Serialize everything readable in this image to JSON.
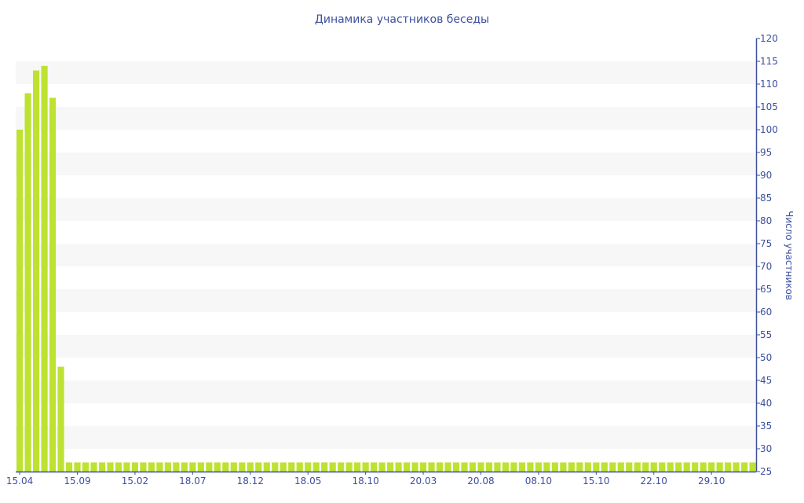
{
  "chart_data": {
    "type": "bar",
    "title": "Динамика участников беседы",
    "ylabel": "Число участников",
    "xlabel": "",
    "ylim": [
      25,
      120
    ],
    "yticks": [
      25,
      30,
      35,
      40,
      45,
      50,
      55,
      60,
      65,
      70,
      75,
      80,
      85,
      90,
      95,
      100,
      105,
      110,
      115,
      120
    ],
    "y_axis_position": "right",
    "grid": "alternating horizontal bands",
    "x_tick_labels": [
      "15.04",
      "15.09",
      "15.02",
      "18.07",
      "18.12",
      "18.05",
      "18.10",
      "20.03",
      "20.08",
      "08.10",
      "15.10",
      "22.10",
      "29.10"
    ],
    "x_tick_every_n_bars": 7,
    "values": [
      100,
      108,
      113,
      114,
      107,
      48,
      27,
      27,
      27,
      27,
      27,
      27,
      27,
      27,
      27,
      27,
      27,
      27,
      27,
      27,
      27,
      27,
      27,
      27,
      27,
      27,
      27,
      27,
      27,
      27,
      27,
      27,
      27,
      27,
      27,
      27,
      27,
      27,
      27,
      27,
      27,
      27,
      27,
      27,
      27,
      27,
      27,
      27,
      27,
      27,
      27,
      27,
      27,
      27,
      27,
      27,
      27,
      27,
      27,
      27,
      27,
      27,
      27,
      27,
      27,
      27,
      27,
      27,
      27,
      27,
      27,
      27,
      27,
      27,
      27,
      27,
      27,
      27,
      27,
      27,
      27,
      27,
      27,
      27,
      27,
      27,
      27,
      27,
      27,
      27
    ],
    "colors": {
      "bar": "#bde232",
      "text": "#3d4f9f",
      "band": "#f7f7f7"
    }
  }
}
